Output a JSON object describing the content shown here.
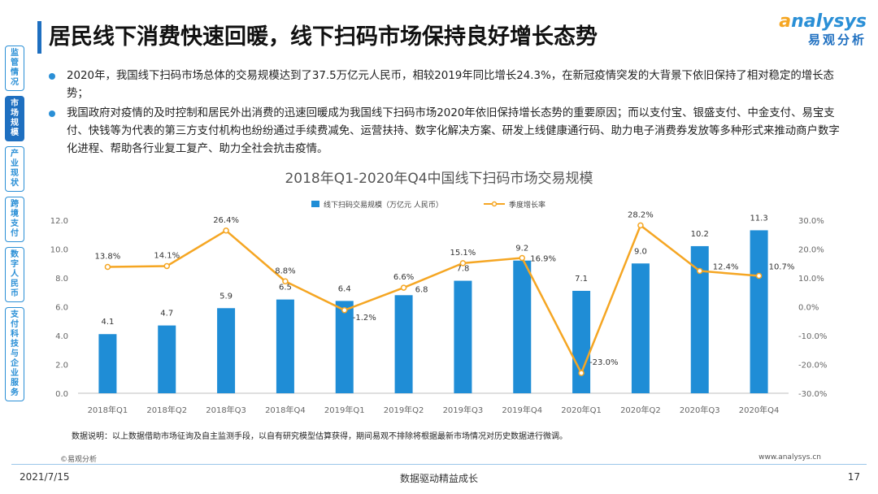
{
  "nav": [
    {
      "label": "监管情况",
      "active": false
    },
    {
      "label": "市场规模",
      "active": true
    },
    {
      "label": "产业现状",
      "active": false
    },
    {
      "label": "跨境支付",
      "active": false
    },
    {
      "label": "数字人民币",
      "active": false
    },
    {
      "label": "支付科技与企业服务",
      "active": false
    }
  ],
  "title": "居民线下消费快速回暖，线下扫码市场保持良好增长态势",
  "logo": {
    "en_a": "a",
    "en_rest": "nalysys",
    "cn": "易观分析"
  },
  "bullets": [
    "2020年，我国线下扫码市场总体的交易规模达到了37.5万亿元人民币，相较2019年同比增长24.3%，在新冠疫情突发的大背景下依旧保持了相对稳定的增长态势；",
    "我国政府对疫情的及时控制和居民外出消费的迅速回暖成为我国线下扫码市场2020年依旧保持增长态势的重要原因；而以支付宝、银盛支付、中金支付、易宝支付、快钱等为代表的第三方支付机构也纷纷通过手续费减免、运营扶持、数字化解决方案、研发上线健康通行码、助力电子消费券发放等多种形式来推动商户数字化进程、帮助各行业复工复产、助力全社会抗击疫情。"
  ],
  "chart_data": {
    "type": "bar",
    "title": "2018年Q1-2020年Q4中国线下扫码市场交易规模",
    "categories": [
      "2018年Q1",
      "2018年Q2",
      "2018年Q3",
      "2018年Q4",
      "2019年Q1",
      "2019年Q2",
      "2019年Q3",
      "2019年Q4",
      "2020年Q1",
      "2020年Q2",
      "2020年Q3",
      "2020年Q4"
    ],
    "series": [
      {
        "name": "线下扫码交易规模（万亿元 人民币）",
        "type": "bar",
        "axis": "left",
        "values": [
          4.1,
          4.7,
          5.9,
          6.5,
          6.4,
          6.8,
          7.8,
          9.2,
          7.1,
          9.0,
          10.2,
          11.3
        ],
        "labels": [
          "4.1",
          "4.7",
          "5.9",
          "6.5",
          "6.4",
          "6.8",
          "7.8",
          "9.2",
          "7.1",
          "9.0",
          "10.2",
          "11.3"
        ]
      },
      {
        "name": "季度增长率",
        "type": "line",
        "axis": "right",
        "values": [
          13.8,
          14.1,
          26.4,
          8.8,
          -1.2,
          6.6,
          15.1,
          16.9,
          -23.0,
          28.2,
          12.4,
          10.7
        ],
        "labels": [
          "13.8%",
          "14.1%",
          "26.4%",
          "8.8%",
          "-1.2%",
          "6.6%",
          "15.1%",
          "16.9%",
          "-23.0%",
          "28.2%",
          "12.4%",
          "10.7%"
        ]
      }
    ],
    "y_left": {
      "range": [
        0,
        12
      ],
      "ticks": [
        "0.0",
        "2.0",
        "4.0",
        "6.0",
        "8.0",
        "10.0",
        "12.0"
      ]
    },
    "y_right": {
      "range": [
        -30,
        30
      ],
      "ticks": [
        "-30.0%",
        "-20.0%",
        "-10.0%",
        "0.0%",
        "10.0%",
        "20.0%",
        "30.0%"
      ]
    },
    "legend_position": "top",
    "grid": false,
    "colors": {
      "bar": "#1f8dd6",
      "line": "#f5a623"
    }
  },
  "note": "数据说明：以上数据借助市场征询及自主监测手段，以自有研究模型估算获得，期间易观不排除将根据最新市场情况对历史数据进行微调。",
  "source": "©易观分析",
  "website": "www.analysys.cn",
  "footer": {
    "date": "2021/7/15",
    "slogan": "数据驱动精益成长",
    "page": "17"
  }
}
